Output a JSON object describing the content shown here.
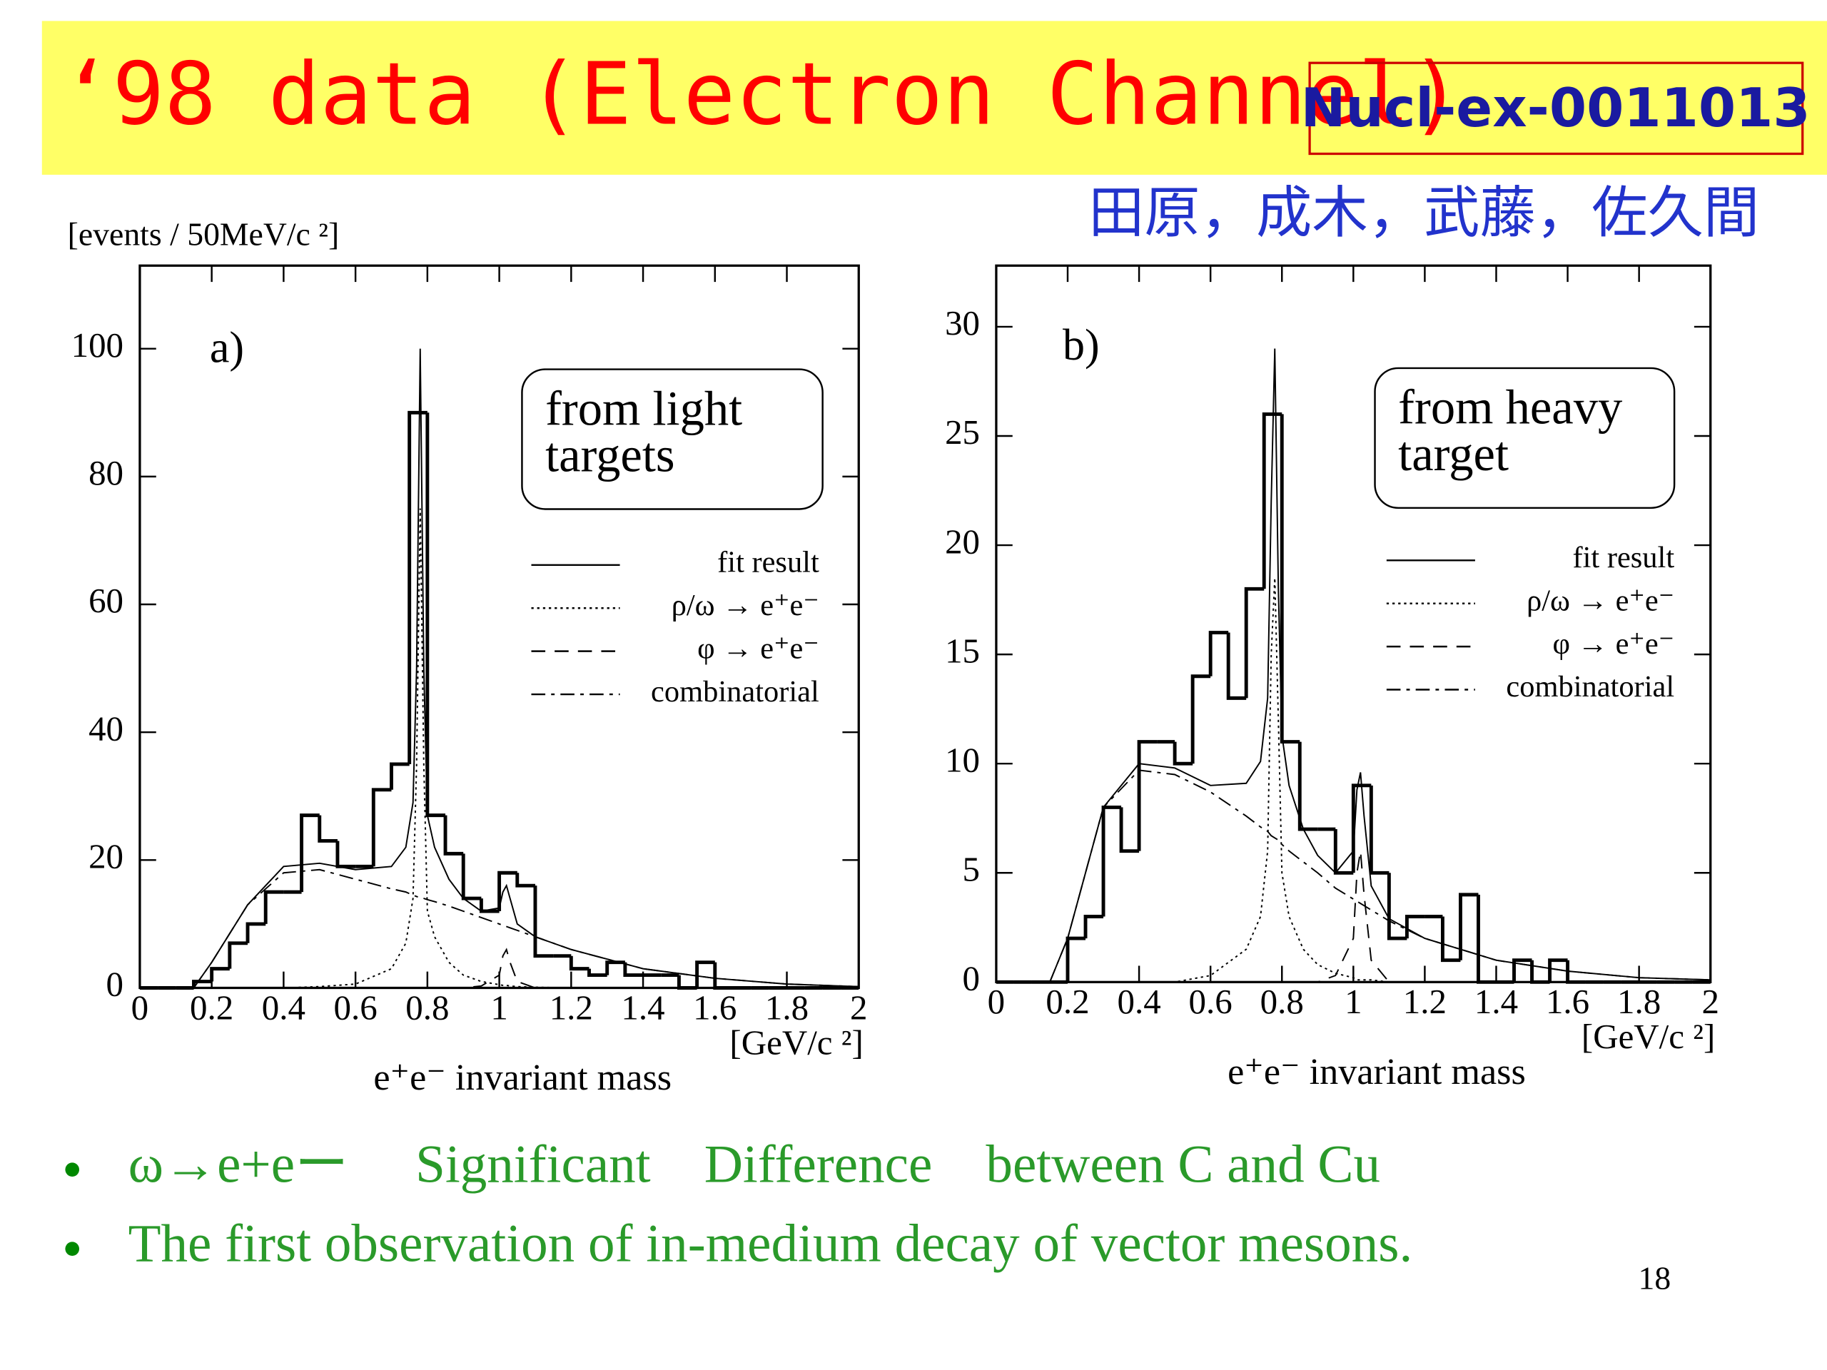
{
  "title": "‘98 data (Electron Channel)",
  "reference": "Nucl-ex-0011013",
  "authors": "田原，成木，武藤，佐久間",
  "bullets": [
    "ω→e+eー　 Significant　Difference　between C and Cu",
    "The first observation of in-medium decay of vector mesons."
  ],
  "page_number": "18",
  "chart_data": [
    {
      "type": "histogram",
      "panel_label": "a)",
      "box_text": [
        "from light",
        "targets"
      ],
      "y_label": "[events / 50MeV/c ²]",
      "x_unit": "[GeV/c ²]",
      "x_label": "e⁺e⁻ invariant mass",
      "xlim": [
        0,
        2
      ],
      "xticks": [
        0,
        0.2,
        0.4,
        0.6,
        0.8,
        1,
        1.2,
        1.4,
        1.6,
        1.8,
        2
      ],
      "ylim": [
        0,
        113
      ],
      "yticks": [
        0,
        20,
        40,
        60,
        80,
        100
      ],
      "color": "#000000",
      "bins": [
        0,
        0.05,
        0.1,
        0.15,
        0.2,
        0.25,
        0.3,
        0.35,
        0.4,
        0.45,
        0.5,
        0.55,
        0.6,
        0.65,
        0.7,
        0.75,
        0.8,
        0.85,
        0.9,
        0.95,
        1,
        1.05,
        1.1,
        1.15,
        1.2,
        1.25,
        1.3,
        1.35,
        1.4,
        1.45,
        1.5,
        1.55,
        1.6,
        1.65,
        1.7,
        1.75,
        1.8,
        1.85,
        1.9,
        1.95,
        2
      ],
      "values": [
        0,
        0,
        0,
        1,
        3,
        7,
        10,
        15,
        15,
        27,
        23,
        19,
        19,
        31,
        35,
        90,
        27,
        21,
        14,
        12,
        18,
        16,
        5,
        5,
        3,
        2,
        4,
        2,
        2,
        2,
        0,
        4,
        0,
        0,
        0,
        0,
        0,
        0,
        0,
        0
      ],
      "curve_x": [
        0.15,
        0.2,
        0.3,
        0.4,
        0.5,
        0.6,
        0.7,
        0.74,
        0.76,
        0.77,
        0.78,
        0.79,
        0.8,
        0.82,
        0.86,
        0.9,
        0.95,
        1,
        1.01,
        1.02,
        1.03,
        1.05,
        1.1,
        1.2,
        1.4,
        1.6,
        1.8,
        2
      ],
      "series": [
        {
          "name": "fit result",
          "style": "solid",
          "values": [
            0,
            4,
            13,
            19,
            19.5,
            18.5,
            19,
            22,
            29,
            50,
            100,
            50,
            27,
            22,
            17,
            14,
            12,
            12.5,
            15,
            16,
            14,
            10,
            8,
            6,
            3,
            1.5,
            0.6,
            0.2
          ]
        },
        {
          "name": "ρ/ω → e⁺e⁻",
          "style": "dotted",
          "values": [
            0,
            0,
            0,
            0,
            0.2,
            0.6,
            3,
            7,
            14,
            35,
            75,
            35,
            12,
            8,
            4,
            2,
            1,
            0.5,
            0.4,
            0.4,
            0.3,
            0.2,
            0.1,
            0,
            0,
            0,
            0,
            0
          ]
        },
        {
          "name": "φ → e⁺e⁻",
          "style": "dashed",
          "values": [
            0,
            0,
            0,
            0,
            0,
            0,
            0,
            0,
            0,
            0,
            0,
            0,
            0,
            0,
            0,
            0,
            0.3,
            2,
            5,
            6,
            4,
            1,
            0,
            0,
            0,
            0,
            0,
            0
          ]
        },
        {
          "name": "combinatorial",
          "style": "dashdot",
          "values": [
            0,
            4,
            13,
            18,
            18.5,
            17,
            15.5,
            15,
            14.5,
            14.3,
            14.1,
            14,
            13.8,
            13.5,
            12.8,
            12,
            11,
            10,
            9.8,
            9.6,
            9.4,
            9,
            8,
            6,
            3,
            1.5,
            0.6,
            0.2
          ]
        }
      ]
    },
    {
      "type": "histogram",
      "panel_label": "b)",
      "box_text": [
        "from heavy",
        "target"
      ],
      "x_unit": "[GeV/c ²]",
      "x_label": "e⁺e⁻ invariant mass",
      "xlim": [
        0,
        2
      ],
      "xticks": [
        0,
        0.2,
        0.4,
        0.6,
        0.8,
        1,
        1.2,
        1.4,
        1.6,
        1.8,
        2
      ],
      "ylim": [
        0,
        32.8
      ],
      "yticks": [
        0,
        5,
        10,
        15,
        20,
        25,
        30
      ],
      "color": "#000000",
      "bins": [
        0,
        0.05,
        0.1,
        0.15,
        0.2,
        0.25,
        0.3,
        0.35,
        0.4,
        0.45,
        0.5,
        0.55,
        0.6,
        0.65,
        0.7,
        0.75,
        0.8,
        0.85,
        0.9,
        0.95,
        1,
        1.05,
        1.1,
        1.15,
        1.2,
        1.25,
        1.3,
        1.35,
        1.4,
        1.45,
        1.5,
        1.55,
        1.6,
        1.65,
        1.7,
        1.75,
        1.8,
        1.85,
        1.9,
        1.95,
        2
      ],
      "values": [
        0,
        0,
        0,
        0,
        2,
        3,
        8,
        6,
        11,
        11,
        10,
        14,
        16,
        13,
        18,
        26,
        11,
        7,
        7,
        5,
        9,
        5,
        2,
        3,
        3,
        1,
        4,
        0,
        0,
        1,
        0,
        1,
        0,
        0,
        0,
        0,
        0,
        0,
        0,
        0
      ],
      "curve_x": [
        0.15,
        0.2,
        0.3,
        0.4,
        0.5,
        0.6,
        0.7,
        0.74,
        0.76,
        0.77,
        0.78,
        0.79,
        0.8,
        0.82,
        0.86,
        0.9,
        0.95,
        1,
        1.01,
        1.02,
        1.03,
        1.05,
        1.1,
        1.2,
        1.4,
        1.6,
        1.8,
        2
      ],
      "series": [
        {
          "name": "fit result",
          "style": "solid",
          "values": [
            0,
            2,
            8,
            10,
            9.8,
            9,
            9.1,
            10.1,
            13,
            22,
            29,
            18,
            11.3,
            9,
            7,
            5.8,
            5,
            6,
            8.8,
            9.6,
            7.6,
            4.4,
            2.9,
            2,
            1,
            0.5,
            0.2,
            0.1
          ]
        },
        {
          "name": "ρ/ω → e⁺e⁻",
          "style": "dotted",
          "values": [
            0,
            0,
            0,
            0,
            0,
            0.3,
            1.5,
            3,
            6,
            15,
            18.5,
            12,
            5,
            3,
            1.5,
            0.8,
            0.4,
            0.2,
            0.1,
            0.1,
            0.1,
            0.1,
            0,
            0,
            0,
            0,
            0,
            0
          ]
        },
        {
          "name": "φ → e⁺e⁻",
          "style": "dashed",
          "values": [
            0,
            0,
            0,
            0,
            0,
            0,
            0,
            0,
            0,
            0,
            0,
            0,
            0,
            0,
            0,
            0,
            0.3,
            2,
            5,
            6,
            4,
            1,
            0,
            0,
            0,
            0,
            0,
            0
          ]
        },
        {
          "name": "combinatorial",
          "style": "dashdot",
          "values": [
            0,
            2,
            8,
            9.7,
            9.5,
            8.7,
            7.6,
            7.1,
            6.9,
            6.7,
            6.6,
            6.5,
            6.3,
            6,
            5.5,
            5,
            4.3,
            3.8,
            3.7,
            3.6,
            3.5,
            3.3,
            2.8,
            2,
            1,
            0.5,
            0.2,
            0.1
          ]
        }
      ]
    }
  ]
}
